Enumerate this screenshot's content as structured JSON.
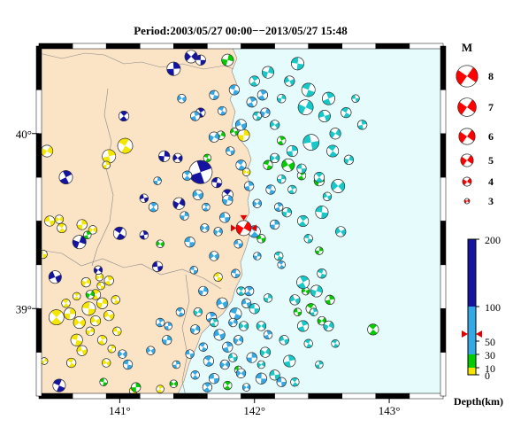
{
  "map": {
    "title": "Period:2003/05/27 00:00−−2013/05/27 15:48",
    "lon_labels": [
      "141°",
      "142°",
      "143°"
    ],
    "lat_labels": [
      "40°",
      "39°"
    ],
    "lon_ticks": [
      141,
      142,
      143
    ],
    "lat_ticks": [
      40,
      39
    ],
    "extent": {
      "lon": [
        140.4,
        143.4
      ],
      "lat": [
        38.5,
        40.5
      ]
    },
    "land_color": "#fbe3c6",
    "sea_color": "#e6fbfb",
    "target_event": {
      "lon": 141.92,
      "lat": 39.46,
      "mag": 4.2,
      "color": "#ff0000"
    }
  },
  "legend": {
    "magnitude_title": "M",
    "magnitudes": [
      "8",
      "7",
      "6",
      "5",
      "4",
      "3"
    ],
    "depth_title": "Depth(km)",
    "depth_ticks": [
      "200",
      "100",
      "50",
      "30",
      "10",
      "0"
    ],
    "depth_colors": {
      "0-10": "#f5e600",
      "10-30": "#00cc00",
      "30-100": "#33a9e8",
      "100-200": "#1414a0"
    },
    "target_depth_km": 58
  },
  "events": [
    [
      141.04,
      39.93,
      4.2,
      "y"
    ],
    [
      140.92,
      39.87,
      4.0,
      "y"
    ],
    [
      140.46,
      39.9,
      3.8,
      "y"
    ],
    [
      140.48,
      39.5,
      3.6,
      "y"
    ],
    [
      140.57,
      39.46,
      3.5,
      "y"
    ],
    [
      140.72,
      39.48,
      3.6,
      "y"
    ],
    [
      140.8,
      39.45,
      3.4,
      "y"
    ],
    [
      140.43,
      39.31,
      3.4,
      "y"
    ],
    [
      140.53,
      38.95,
      4.2,
      "y"
    ],
    [
      140.63,
      38.97,
      3.8,
      "y"
    ],
    [
      140.7,
      38.92,
      3.8,
      "y"
    ],
    [
      140.77,
      39.0,
      4.0,
      "y"
    ],
    [
      140.82,
      39.08,
      3.6,
      "y"
    ],
    [
      140.87,
      39.03,
      3.7,
      "y"
    ],
    [
      140.82,
      38.93,
      3.6,
      "y"
    ],
    [
      140.68,
      38.82,
      3.8,
      "y"
    ],
    [
      140.87,
      38.82,
      3.5,
      "y"
    ],
    [
      140.78,
      38.87,
      3.4,
      "y"
    ],
    [
      140.92,
      38.96,
      3.6,
      "y"
    ],
    [
      140.97,
      39.05,
      3.4,
      "y"
    ],
    [
      140.92,
      39.16,
      3.5,
      "y"
    ],
    [
      140.75,
      39.15,
      3.5,
      "y"
    ],
    [
      140.72,
      38.76,
      3.6,
      "y"
    ],
    [
      140.64,
      38.69,
      3.5,
      "y"
    ],
    [
      140.94,
      38.77,
      3.3,
      "y"
    ],
    [
      140.85,
      39.18,
      3.3,
      "y"
    ],
    [
      140.98,
      38.87,
      3.4,
      "y"
    ],
    [
      140.6,
      39.03,
      3.4,
      "y"
    ],
    [
      140.9,
      39.82,
      3.3,
      "y"
    ],
    [
      140.55,
      39.51,
      3.4,
      "y"
    ],
    [
      140.86,
      39.13,
      3.3,
      "y"
    ],
    [
      140.68,
      39.07,
      3.3,
      "y"
    ],
    [
      141.92,
      39.99,
      3.8,
      "y"
    ],
    [
      141.94,
      39.78,
      3.3,
      "y"
    ],
    [
      141.1,
      38.53,
      3.3,
      "y"
    ],
    [
      141.3,
      38.54,
      3.3,
      "y"
    ],
    [
      140.44,
      38.7,
      3.2,
      "y"
    ],
    [
      140.9,
      38.69,
      3.4,
      "y"
    ],
    [
      141.73,
      39.18,
      3.4,
      "y"
    ],
    [
      140.6,
      39.75,
      4.0,
      "n"
    ],
    [
      140.7,
      39.38,
      4.0,
      "n"
    ],
    [
      140.52,
      39.18,
      3.9,
      "n"
    ],
    [
      140.55,
      38.56,
      3.9,
      "n"
    ],
    [
      141.6,
      39.78,
      5.2,
      "n"
    ],
    [
      141.44,
      39.6,
      3.8,
      "n"
    ],
    [
      141.18,
      39.63,
      3.4,
      "n"
    ],
    [
      141.0,
      39.43,
      3.9,
      "n"
    ],
    [
      141.18,
      39.42,
      3.4,
      "n"
    ],
    [
      140.84,
      39.22,
      3.4,
      "n"
    ],
    [
      141.28,
      39.24,
      3.6,
      "n"
    ],
    [
      141.8,
      39.65,
      3.7,
      "n"
    ],
    [
      141.4,
      40.37,
      4.0,
      "n"
    ],
    [
      141.53,
      40.44,
      3.9,
      "n"
    ],
    [
      141.6,
      40.42,
      3.6,
      "n"
    ],
    [
      141.03,
      40.1,
      3.6,
      "n"
    ],
    [
      141.33,
      39.87,
      3.7,
      "n"
    ],
    [
      141.43,
      39.86,
      3.5,
      "n"
    ],
    [
      141.72,
      39.72,
      3.6,
      "n"
    ],
    [
      141.6,
      40.12,
      3.5,
      "n"
    ],
    [
      141.8,
      40.42,
      3.8,
      "g"
    ],
    [
      142.25,
      39.82,
      3.9,
      "g"
    ],
    [
      142.1,
      39.82,
      3.5,
      "g"
    ],
    [
      142.2,
      39.96,
      3.4,
      "g"
    ],
    [
      141.75,
      39.99,
      3.4,
      "g"
    ],
    [
      141.85,
      40.01,
      3.3,
      "g"
    ],
    [
      141.65,
      39.86,
      3.3,
      "g"
    ],
    [
      140.76,
      39.42,
      3.3,
      "g"
    ],
    [
      140.78,
      39.08,
      3.4,
      "g"
    ],
    [
      142.05,
      39.4,
      3.4,
      "g"
    ],
    [
      142.42,
      39.0,
      3.6,
      "g"
    ],
    [
      142.56,
      39.05,
      3.5,
      "g"
    ],
    [
      142.5,
      38.93,
      3.4,
      "g"
    ],
    [
      142.32,
      38.98,
      3.3,
      "g"
    ],
    [
      142.88,
      38.88,
      3.7,
      "g"
    ],
    [
      141.12,
      38.55,
      3.5,
      "g"
    ],
    [
      141.4,
      38.57,
      3.3,
      "g"
    ],
    [
      141.88,
      38.65,
      3.3,
      "g"
    ],
    [
      141.8,
      38.56,
      3.4,
      "g"
    ],
    [
      142.48,
      39.33,
      3.3,
      "g"
    ],
    [
      141.3,
      39.37,
      3.3,
      "g"
    ],
    [
      140.88,
      38.58,
      3.3,
      "g"
    ],
    [
      142.35,
      39.76,
      3.4,
      "g"
    ],
    [
      142.48,
      39.73,
      3.6,
      "g"
    ],
    [
      142.38,
      39.1,
      3.3,
      "g"
    ],
    [
      141.85,
      40.25,
      3.6,
      "b"
    ],
    [
      141.98,
      40.18,
      3.6,
      "b"
    ],
    [
      142.08,
      40.12,
      3.5,
      "b"
    ],
    [
      141.9,
      40.05,
      3.7,
      "b"
    ],
    [
      141.76,
      40.13,
      3.4,
      "b"
    ],
    [
      141.56,
      40.1,
      3.5,
      "b"
    ],
    [
      141.7,
      39.98,
      3.6,
      "b"
    ],
    [
      141.82,
      39.9,
      3.4,
      "b"
    ],
    [
      141.9,
      39.82,
      3.6,
      "b"
    ],
    [
      141.96,
      39.7,
      3.5,
      "b"
    ],
    [
      142.02,
      39.6,
      3.4,
      "b"
    ],
    [
      141.78,
      39.52,
      3.6,
      "b"
    ],
    [
      142.0,
      39.44,
      3.8,
      "b"
    ],
    [
      142.15,
      39.48,
      3.5,
      "b"
    ],
    [
      141.63,
      39.46,
      3.4,
      "b"
    ],
    [
      141.52,
      39.38,
      3.6,
      "b"
    ],
    [
      141.25,
      39.58,
      3.5,
      "b"
    ],
    [
      141.48,
      39.53,
      3.4,
      "b"
    ],
    [
      141.7,
      39.3,
      3.5,
      "b"
    ],
    [
      141.86,
      39.2,
      3.4,
      "b"
    ],
    [
      141.96,
      39.1,
      3.5,
      "b"
    ],
    [
      141.62,
      39.1,
      3.5,
      "b"
    ],
    [
      141.76,
      39.03,
      3.7,
      "b"
    ],
    [
      141.86,
      38.97,
      3.8,
      "b"
    ],
    [
      141.68,
      38.95,
      3.6,
      "b"
    ],
    [
      141.56,
      38.88,
      3.5,
      "b"
    ],
    [
      141.74,
      38.85,
      3.7,
      "b"
    ],
    [
      141.62,
      38.78,
      3.4,
      "b"
    ],
    [
      141.8,
      38.78,
      3.6,
      "b"
    ],
    [
      141.88,
      38.82,
      3.5,
      "b"
    ],
    [
      141.52,
      38.74,
      3.4,
      "b"
    ],
    [
      141.66,
      38.7,
      3.6,
      "b"
    ],
    [
      141.42,
      38.68,
      3.3,
      "b"
    ],
    [
      141.78,
      38.68,
      3.5,
      "b"
    ],
    [
      141.7,
      38.6,
      3.6,
      "b"
    ],
    [
      141.56,
      38.62,
      3.4,
      "b"
    ],
    [
      141.98,
      38.72,
      3.6,
      "b"
    ],
    [
      141.9,
      38.63,
      3.5,
      "b"
    ],
    [
      142.05,
      38.6,
      3.7,
      "b"
    ],
    [
      141.65,
      38.55,
      3.5,
      "b"
    ],
    [
      141.35,
      38.82,
      3.5,
      "b"
    ],
    [
      141.23,
      38.76,
      3.4,
      "b"
    ],
    [
      141.06,
      38.68,
      3.5,
      "b"
    ],
    [
      141.3,
      38.92,
      3.4,
      "b"
    ],
    [
      141.8,
      39.62,
      3.6,
      "b"
    ],
    [
      141.58,
      39.65,
      3.6,
      "b"
    ],
    [
      142.12,
      39.68,
      3.5,
      "b"
    ],
    [
      142.18,
      39.58,
      3.4,
      "b"
    ],
    [
      141.84,
      38.92,
      3.4,
      "b"
    ],
    [
      141.94,
      39.03,
      3.5,
      "b"
    ],
    [
      141.45,
      38.98,
      3.4,
      "b"
    ],
    [
      142.1,
      38.85,
      3.4,
      "b"
    ],
    [
      141.73,
      39.44,
      3.4,
      "b"
    ],
    [
      141.88,
      39.37,
      3.4,
      "b"
    ],
    [
      142.2,
      39.25,
      3.3,
      "b"
    ],
    [
      141.36,
      38.9,
      3.3,
      "b"
    ],
    [
      141.94,
      38.55,
      3.3,
      "b"
    ],
    [
      142.2,
      38.58,
      3.5,
      "b"
    ],
    [
      141.5,
      39.76,
      3.5,
      "b"
    ],
    [
      141.28,
      39.73,
      3.3,
      "b"
    ],
    [
      141.02,
      38.74,
      3.4,
      "b"
    ],
    [
      141.55,
      39.22,
      3.3,
      "b"
    ],
    [
      141.64,
      39.58,
      3.3,
      "b"
    ],
    [
      142.02,
      39.3,
      3.3,
      "b"
    ],
    [
      141.46,
      40.2,
      3.4,
      "b"
    ],
    [
      141.7,
      40.22,
      3.5,
      "b"
    ],
    [
      142.06,
      40.22,
      3.6,
      "b"
    ],
    [
      142.1,
      40.35,
      3.8,
      "c"
    ],
    [
      142.26,
      40.3,
      3.6,
      "c"
    ],
    [
      142.4,
      40.25,
      4.0,
      "c"
    ],
    [
      142.55,
      40.2,
      3.9,
      "c"
    ],
    [
      142.38,
      40.15,
      4.2,
      "c"
    ],
    [
      142.52,
      40.1,
      3.8,
      "c"
    ],
    [
      142.68,
      40.12,
      3.6,
      "c"
    ],
    [
      142.8,
      40.05,
      3.5,
      "c"
    ],
    [
      142.6,
      40.0,
      3.7,
      "c"
    ],
    [
      142.42,
      39.95,
      4.3,
      "c"
    ],
    [
      142.58,
      39.9,
      3.8,
      "c"
    ],
    [
      142.28,
      39.9,
      3.7,
      "c"
    ],
    [
      142.15,
      39.86,
      3.5,
      "c"
    ],
    [
      142.35,
      39.8,
      3.5,
      "c"
    ],
    [
      142.48,
      39.75,
      3.6,
      "c"
    ],
    [
      142.2,
      39.74,
      3.4,
      "c"
    ],
    [
      142.62,
      39.7,
      4.0,
      "c"
    ],
    [
      142.5,
      39.55,
      3.9,
      "c"
    ],
    [
      142.36,
      39.5,
      3.7,
      "c"
    ],
    [
      142.24,
      39.55,
      3.5,
      "c"
    ],
    [
      142.64,
      39.44,
      3.6,
      "c"
    ],
    [
      142.4,
      39.4,
      3.4,
      "c"
    ],
    [
      142.36,
      39.15,
      3.9,
      "c"
    ],
    [
      142.46,
      39.1,
      3.8,
      "c"
    ],
    [
      142.3,
      39.05,
      3.6,
      "c"
    ],
    [
      142.5,
      39.2,
      3.5,
      "c"
    ],
    [
      142.36,
      38.9,
      3.7,
      "c"
    ],
    [
      142.55,
      38.9,
      3.6,
      "c"
    ],
    [
      142.22,
      38.82,
      3.5,
      "c"
    ],
    [
      142.4,
      38.8,
      3.4,
      "c"
    ],
    [
      142.26,
      38.7,
      3.8,
      "c"
    ],
    [
      142.08,
      38.75,
      3.6,
      "c"
    ],
    [
      142.15,
      38.62,
      3.6,
      "c"
    ],
    [
      142.3,
      38.58,
      3.4,
      "c"
    ],
    [
      142.48,
      38.68,
      3.3,
      "c"
    ],
    [
      142.05,
      38.9,
      3.5,
      "c"
    ],
    [
      142.0,
      39.0,
      3.6,
      "c"
    ],
    [
      141.9,
      39.1,
      3.4,
      "c"
    ],
    [
      142.1,
      39.06,
      3.4,
      "c"
    ],
    [
      141.92,
      38.9,
      3.5,
      "c"
    ],
    [
      142.32,
      40.4,
      3.9,
      "c"
    ],
    [
      142.0,
      40.3,
      3.6,
      "c"
    ],
    [
      142.2,
      40.2,
      3.4,
      "c"
    ],
    [
      142.15,
      40.05,
      3.5,
      "c"
    ],
    [
      142.02,
      40.1,
      3.4,
      "c"
    ],
    [
      142.28,
      39.68,
      3.4,
      "c"
    ],
    [
      142.7,
      39.85,
      3.5,
      "c"
    ],
    [
      142.54,
      39.64,
      3.4,
      "c"
    ],
    [
      142.18,
      39.3,
      3.4,
      "c"
    ],
    [
      141.7,
      38.92,
      3.4,
      "c"
    ],
    [
      141.58,
      38.98,
      3.4,
      "c"
    ],
    [
      141.84,
      38.72,
      3.4,
      "c"
    ],
    [
      142.6,
      38.8,
      3.3,
      "c"
    ],
    [
      142.44,
      38.98,
      3.3,
      "c"
    ],
    [
      142.05,
      38.68,
      3.3,
      "c"
    ],
    [
      142.75,
      40.2,
      3.3,
      "c"
    ]
  ]
}
